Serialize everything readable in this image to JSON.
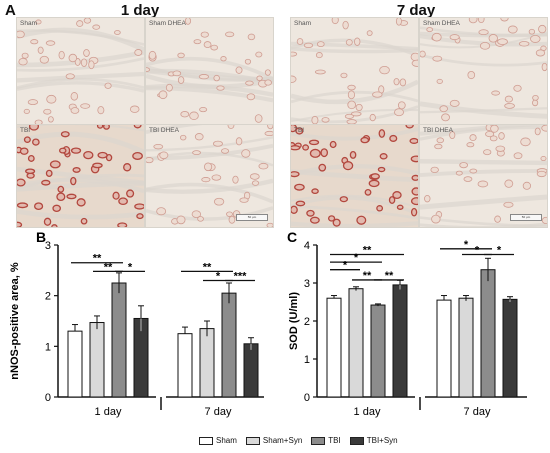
{
  "panel_a": {
    "letter": "A",
    "time_titles": [
      "1 day",
      "7 day"
    ],
    "tiles": [
      {
        "label": "Sham",
        "scalebar": false,
        "stain": "light"
      },
      {
        "label": "Sham DHEA",
        "scalebar": false,
        "stain": "light"
      },
      {
        "label": "TBI",
        "scalebar": false,
        "stain": "heavy"
      },
      {
        "label": "TBI DHEA",
        "scalebar": true,
        "stain": "light"
      },
      {
        "label": "Sham",
        "scalebar": false,
        "stain": "light"
      },
      {
        "label": "Sham DHEA",
        "scalebar": false,
        "stain": "light"
      },
      {
        "label": "TBI",
        "scalebar": false,
        "stain": "heavy"
      },
      {
        "label": "TBI DHEA",
        "scalebar": true,
        "stain": "light"
      }
    ],
    "scalebar_text": "50 µm"
  },
  "legend": {
    "items": [
      {
        "label": "Sham",
        "color": "#ffffff"
      },
      {
        "label": "Sham+Syn",
        "color": "#d9d9d9"
      },
      {
        "label": "TBI",
        "color": "#8c8c8c"
      },
      {
        "label": "TBI+Syn",
        "color": "#3a3a3a"
      }
    ]
  },
  "chart_data": [
    {
      "letter": "B",
      "type": "bar",
      "ylabel": "nNOS-positive area, %",
      "ylim": [
        0,
        3
      ],
      "yticks": [
        0,
        1,
        2,
        3
      ],
      "groups": [
        "1 day",
        "7 day"
      ],
      "series": [
        {
          "name": "Sham",
          "color": "#ffffff",
          "values": [
            1.3,
            1.25
          ],
          "errors": [
            0.13,
            0.13
          ]
        },
        {
          "name": "Sham+Syn",
          "color": "#d9d9d9",
          "values": [
            1.47,
            1.35
          ],
          "errors": [
            0.13,
            0.15
          ]
        },
        {
          "name": "TBI",
          "color": "#8c8c8c",
          "values": [
            2.25,
            2.05
          ],
          "errors": [
            0.2,
            0.2
          ]
        },
        {
          "name": "TBI+Syn",
          "color": "#3a3a3a",
          "values": [
            1.55,
            1.05
          ],
          "errors": [
            0.25,
            0.12
          ]
        }
      ],
      "significance": [
        {
          "group": 0,
          "from": 0,
          "to": 2,
          "y": 2.65,
          "label": "**"
        },
        {
          "group": 0,
          "from": 1,
          "to": 2,
          "y": 2.48,
          "label": "**"
        },
        {
          "group": 0,
          "from": 2,
          "to": 3,
          "y": 2.48,
          "label": "*"
        },
        {
          "group": 1,
          "from": 0,
          "to": 2,
          "y": 2.48,
          "label": "**"
        },
        {
          "group": 1,
          "from": 1,
          "to": 2,
          "y": 2.3,
          "label": "*"
        },
        {
          "group": 1,
          "from": 2,
          "to": 3,
          "y": 2.3,
          "label": "***"
        }
      ]
    },
    {
      "letter": "C",
      "type": "bar",
      "ylabel": "SOD (U/ml)",
      "ylim": [
        0,
        4
      ],
      "yticks": [
        0,
        1,
        2,
        3,
        4
      ],
      "groups": [
        "1 day",
        "7 day"
      ],
      "series": [
        {
          "name": "Sham",
          "color": "#ffffff",
          "values": [
            2.6,
            2.55
          ],
          "errors": [
            0.07,
            0.12
          ]
        },
        {
          "name": "Sham+Syn",
          "color": "#d9d9d9",
          "values": [
            2.85,
            2.6
          ],
          "errors": [
            0.05,
            0.07
          ]
        },
        {
          "name": "TBI",
          "color": "#8c8c8c",
          "values": [
            2.42,
            3.35
          ],
          "errors": [
            0.03,
            0.3
          ]
        },
        {
          "name": "TBI+Syn",
          "color": "#3a3a3a",
          "values": [
            2.95,
            2.57
          ],
          "errors": [
            0.12,
            0.07
          ]
        }
      ],
      "significance": [
        {
          "group": 0,
          "from": 0,
          "to": 3,
          "y": 3.75,
          "label": "**"
        },
        {
          "group": 0,
          "from": 0,
          "to": 2,
          "y": 3.55,
          "label": "*"
        },
        {
          "group": 0,
          "from": 0,
          "to": 1,
          "y": 3.35,
          "label": "*"
        },
        {
          "group": 0,
          "from": 1,
          "to": 2,
          "y": 3.08,
          "label": "**"
        },
        {
          "group": 0,
          "from": 2,
          "to": 3,
          "y": 3.08,
          "label": "**"
        },
        {
          "group": 1,
          "from": 0,
          "to": 2,
          "y": 3.9,
          "label": "*"
        },
        {
          "group": 1,
          "from": 1,
          "to": 2,
          "y": 3.75,
          "label": "*"
        },
        {
          "group": 1,
          "from": 2,
          "to": 3,
          "y": 3.75,
          "label": "*"
        }
      ]
    }
  ]
}
